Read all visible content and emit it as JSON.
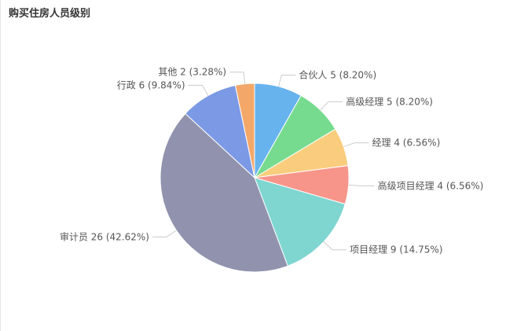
{
  "chart_data": {
    "type": "pie",
    "title": "购买住房人员级别",
    "slices": [
      {
        "label": "合伙人 5 (8.20%)",
        "name": "合伙人",
        "value": 5,
        "percent": "8.20%",
        "color": "#67b3ee"
      },
      {
        "label": "高级经理 5 (8.20%)",
        "name": "高级经理",
        "value": 5,
        "percent": "8.20%",
        "color": "#77db8f"
      },
      {
        "label": "经理 4 (6.56%)",
        "name": "经理",
        "value": 4,
        "percent": "6.56%",
        "color": "#f9cd7d"
      },
      {
        "label": "高级项目经理 4 (6.56%)",
        "name": "高级项目经理",
        "value": 4,
        "percent": "6.56%",
        "color": "#f7958a"
      },
      {
        "label": "项目经理 9 (14.75%)",
        "name": "项目经理",
        "value": 9,
        "percent": "14.75%",
        "color": "#7fd6d1"
      },
      {
        "label": "审计员 26 (42.62%)",
        "name": "审计员",
        "value": 26,
        "percent": "42.62%",
        "color": "#9193ae"
      },
      {
        "label": "行政 6 (9.84%)",
        "name": "行政",
        "value": 6,
        "percent": "9.84%",
        "color": "#7b99e5"
      },
      {
        "label": "其他 2 (3.28%)",
        "name": "其他",
        "value": 2,
        "percent": "3.28%",
        "color": "#f3a86a"
      }
    ]
  }
}
